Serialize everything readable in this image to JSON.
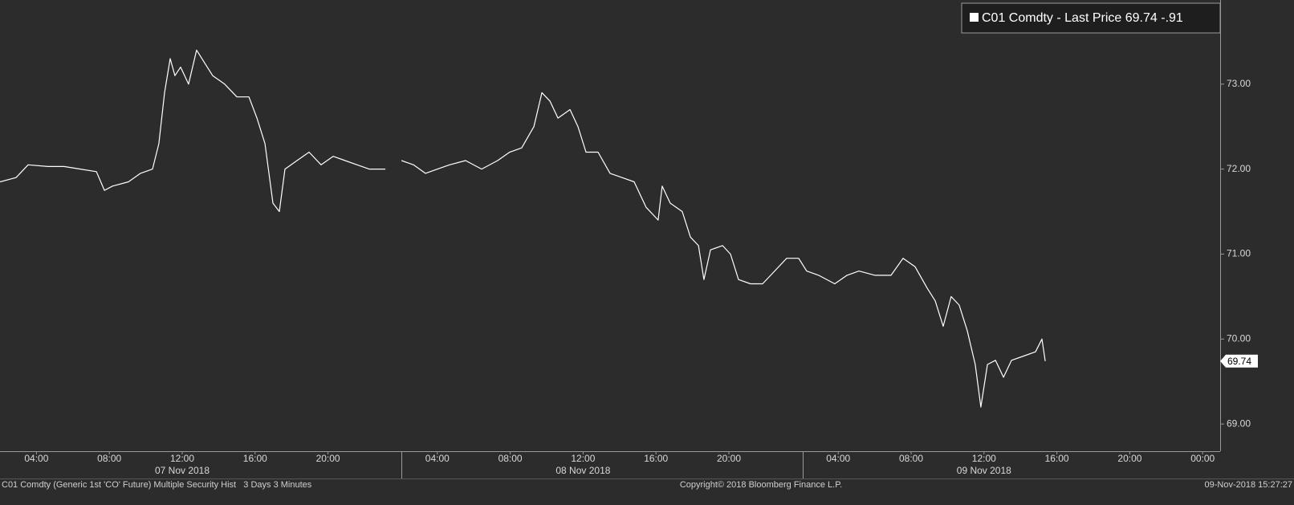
{
  "chart_data": {
    "type": "line",
    "legend": {
      "name": "C01 Comdty - Last Price",
      "last": 69.74,
      "change": {
        "value": -0.91,
        "label": "-.91"
      }
    },
    "footer": {
      "left": "C01 Comdty (Generic 1st 'CO' Future) Multiple Security Hist   3 Days 3 Minutes",
      "center": "Copyright© 2018 Bloomberg Finance L.P.",
      "right": "09-Nov-2018 15:27:27"
    },
    "ylim": [
      68.68,
      73.99
    ],
    "yticks": [
      {
        "value": 69,
        "label": "69.00"
      },
      {
        "value": 70,
        "label": "70.00"
      },
      {
        "value": 71,
        "label": "71.00"
      },
      {
        "value": 72,
        "label": "72.00"
      },
      {
        "value": 73,
        "label": "73.00"
      }
    ],
    "xlim": [
      0,
      66.96
    ],
    "xticks": [
      {
        "value": 2,
        "label": "04:00"
      },
      {
        "value": 6,
        "label": "08:00"
      },
      {
        "value": 10,
        "label": "12:00"
      },
      {
        "value": 14,
        "label": "16:00"
      },
      {
        "value": 18,
        "label": "20:00"
      },
      {
        "value": 24,
        "label": "04:00"
      },
      {
        "value": 28,
        "label": "08:00"
      },
      {
        "value": 32,
        "label": "12:00"
      },
      {
        "value": 36,
        "label": "16:00"
      },
      {
        "value": 40,
        "label": "20:00"
      },
      {
        "value": 46,
        "label": "04:00"
      },
      {
        "value": 50,
        "label": "08:00"
      },
      {
        "value": 54,
        "label": "12:00"
      },
      {
        "value": 58,
        "label": "16:00"
      },
      {
        "value": 62,
        "label": "20:00"
      },
      {
        "value": 66,
        "label": "00:00"
      }
    ],
    "date_ticks": [
      {
        "value": 10,
        "label": "07 Nov 2018"
      },
      {
        "value": 32,
        "label": "08 Nov 2018"
      },
      {
        "value": 54,
        "label": "09 Nov 2018"
      }
    ],
    "grid": false,
    "x": [
      0,
      0.88,
      1.54,
      2.64,
      3.52,
      4.41,
      5.29,
      5.73,
      6.17,
      7.05,
      7.71,
      8.37,
      8.72,
      9.03,
      9.34,
      9.6,
      9.91,
      10.35,
      10.79,
      11.23,
      11.67,
      12.33,
      13.0,
      13.66,
      14.1,
      14.54,
      14.98,
      15.33,
      15.64,
      16.3,
      16.96,
      17.62,
      18.28,
      18.94,
      19.6,
      20.26,
      21.15,
      21.6,
      22.03,
      22.69,
      23.35,
      24.01,
      24.67,
      25.55,
      26.43,
      27.31,
      27.97,
      28.63,
      29.3,
      29.74,
      30.18,
      30.62,
      31.28,
      31.72,
      32.16,
      32.82,
      33.48,
      34.14,
      34.8,
      35.46,
      36.12,
      36.34,
      36.78,
      37.44,
      37.89,
      38.33,
      38.63,
      38.99,
      39.65,
      40.09,
      40.53,
      41.19,
      41.85,
      42.51,
      43.17,
      43.83,
      44.27,
      44.93,
      45.81,
      46.48,
      47.14,
      48.02,
      48.9,
      49.56,
      50.22,
      50.88,
      51.32,
      51.76,
      52.2,
      52.64,
      53.08,
      53.52,
      53.83,
      54.19,
      54.63,
      55.07,
      55.51,
      56.17,
      56.83,
      57.18,
      57.36
    ],
    "series": [
      {
        "name": "C01 Comdty - Last Price",
        "color": "#ffffff",
        "values": [
          71.85,
          71.9,
          72.05,
          72.03,
          72.03,
          72.0,
          71.97,
          71.75,
          71.8,
          71.85,
          71.95,
          72.0,
          72.3,
          72.9,
          73.3,
          73.1,
          73.2,
          73.0,
          73.4,
          73.25,
          73.1,
          73.0,
          72.85,
          72.85,
          72.6,
          72.3,
          71.6,
          71.5,
          72.0,
          72.1,
          72.2,
          72.05,
          72.15,
          72.1,
          72.05,
          72.0,
          72.0,
          null,
          72.1,
          72.05,
          71.95,
          72.0,
          72.05,
          72.1,
          72.0,
          72.1,
          72.2,
          72.25,
          72.5,
          72.9,
          72.8,
          72.6,
          72.7,
          72.5,
          72.2,
          72.2,
          71.95,
          71.9,
          71.85,
          71.55,
          71.4,
          71.8,
          71.6,
          71.5,
          71.2,
          71.1,
          70.7,
          71.05,
          71.1,
          71.0,
          70.7,
          70.65,
          70.65,
          70.8,
          70.95,
          70.95,
          70.8,
          70.75,
          70.65,
          70.75,
          70.8,
          70.75,
          70.75,
          70.95,
          70.85,
          70.6,
          70.45,
          70.15,
          70.5,
          70.4,
          70.1,
          69.7,
          69.2,
          69.7,
          69.75,
          69.55,
          69.75,
          69.8,
          69.85,
          70.0,
          69.74
        ]
      }
    ]
  }
}
